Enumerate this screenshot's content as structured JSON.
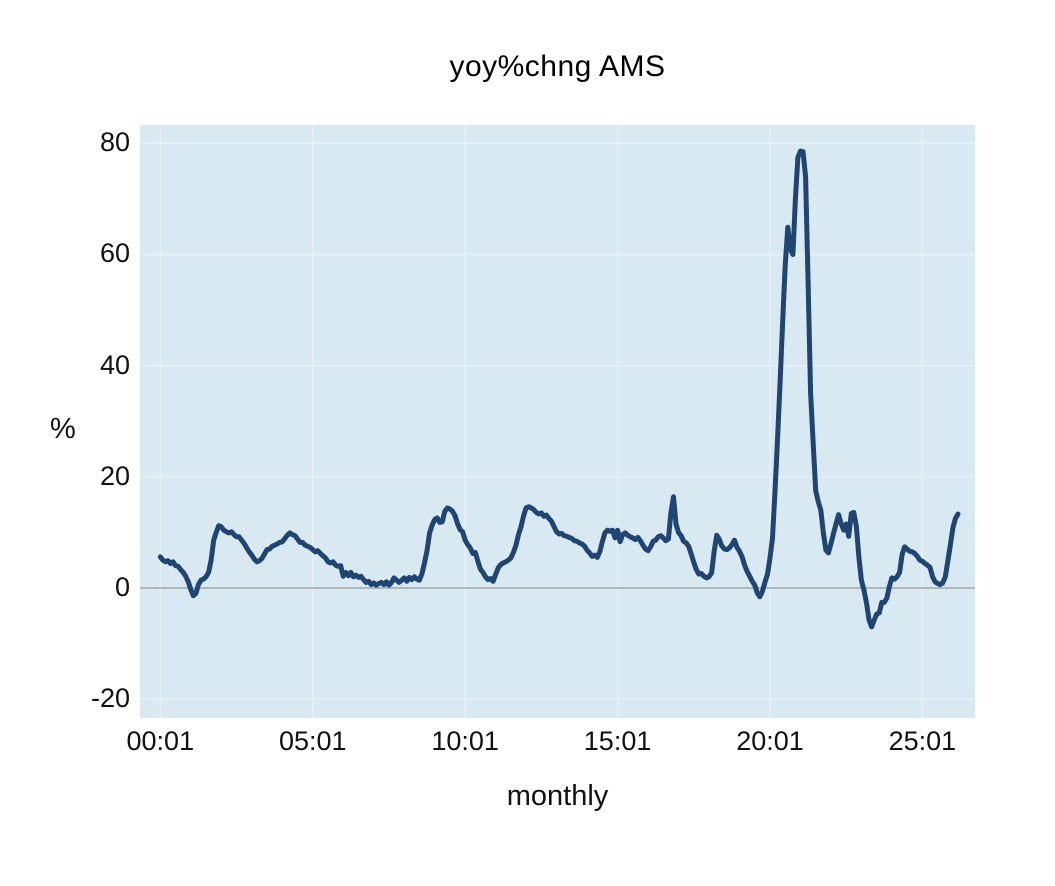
{
  "page": {
    "background": "#ffffff"
  },
  "chart_data": {
    "type": "line",
    "title": "yoy%chng AMS",
    "ylabel": "%",
    "xlabel": "monthly",
    "legend": "none",
    "grid": true,
    "plot_bg": "#d9e9f2",
    "grid_color": "#e9f1f7",
    "zero_line_color": "#a6a6a6",
    "line_color": "#1f4572",
    "line_width": 5,
    "x_unit": "months since 2000-01 (labels are yy:mm)",
    "x_tick_labels": [
      "00:01",
      "05:01",
      "10:01",
      "15:01",
      "20:01",
      "25:01"
    ],
    "x_tick_months": [
      0,
      60,
      120,
      180,
      240,
      300
    ],
    "y_ticks": [
      80,
      60,
      40,
      20,
      0,
      -20
    ],
    "ylim": [
      -23.4,
      83.3
    ],
    "xlim_months": [
      -8,
      320.7
    ],
    "series_start": "2000-01",
    "series_end": "2026-03",
    "frequency": "monthly",
    "values": [
      5.6,
      5.0,
      4.7,
      4.9,
      4.4,
      4.7,
      4.0,
      3.9,
      3.3,
      2.8,
      2.1,
      1.1,
      -0.3,
      -1.4,
      -1.0,
      0.6,
      1.4,
      1.6,
      2.0,
      2.8,
      5.0,
      8.6,
      10.0,
      11.2,
      11.0,
      10.4,
      10.1,
      9.9,
      10.1,
      9.6,
      9.2,
      9.2,
      8.6,
      8.0,
      7.2,
      6.5,
      5.9,
      5.2,
      4.7,
      4.9,
      5.3,
      6.1,
      6.9,
      7.0,
      7.5,
      7.7,
      7.9,
      8.2,
      8.3,
      8.9,
      9.5,
      9.9,
      9.6,
      9.4,
      8.8,
      8.2,
      8.2,
      7.7,
      7.5,
      7.3,
      6.9,
      6.5,
      6.7,
      6.2,
      5.8,
      5.4,
      4.7,
      4.5,
      4.7,
      4.1,
      3.9,
      4.0,
      2.1,
      2.8,
      2.2,
      2.8,
      2.0,
      2.3,
      1.9,
      2.1,
      1.5,
      1.0,
      1.2,
      0.6,
      0.9,
      0.5,
      0.8,
      1.0,
      0.6,
      1.1,
      0.5,
      1.0,
      1.8,
      1.4,
      1.0,
      1.4,
      1.8,
      1.2,
      1.9,
      1.5,
      2.0,
      1.6,
      1.4,
      2.6,
      4.5,
      6.8,
      9.9,
      11.3,
      12.3,
      12.6,
      11.8,
      11.9,
      13.8,
      14.4,
      14.2,
      13.8,
      13.0,
      11.6,
      10.5,
      10.1,
      8.6,
      7.8,
      7.2,
      6.2,
      6.4,
      4.8,
      3.4,
      2.8,
      2.0,
      1.5,
      1.7,
      1.2,
      2.4,
      3.6,
      4.2,
      4.5,
      4.7,
      5.0,
      5.4,
      6.4,
      7.7,
      9.6,
      11.0,
      13.0,
      14.4,
      14.6,
      14.4,
      14.1,
      13.6,
      13.3,
      13.5,
      12.9,
      13.1,
      12.5,
      12.0,
      11.0,
      10.1,
      9.7,
      9.8,
      9.4,
      9.3,
      9.1,
      8.9,
      8.5,
      8.4,
      8.1,
      7.9,
      7.5,
      6.8,
      6.3,
      5.7,
      5.9,
      5.5,
      6.5,
      8.3,
      9.9,
      10.4,
      10.2,
      10.4,
      9.0,
      10.4,
      8.3,
      9.6,
      9.9,
      9.5,
      9.2,
      9.0,
      8.7,
      9.1,
      8.5,
      7.7,
      7.0,
      6.7,
      7.4,
      8.4,
      8.6,
      9.2,
      9.4,
      9.0,
      8.5,
      8.8,
      13.5,
      16.4,
      11.5,
      10.0,
      9.4,
      8.4,
      8.1,
      7.5,
      6.1,
      4.6,
      3.3,
      2.5,
      2.6,
      2.1,
      1.8,
      2.0,
      2.7,
      6.5,
      9.5,
      8.8,
      7.6,
      7.0,
      6.9,
      7.2,
      7.8,
      8.6,
      7.3,
      6.6,
      5.6,
      4.1,
      3.0,
      2.1,
      1.2,
      0.5,
      -0.9,
      -1.6,
      -0.6,
      1.0,
      2.5,
      5.4,
      9.0,
      17.7,
      27.0,
      37.5,
      48.0,
      58.0,
      64.9,
      61.0,
      60.0,
      70.0,
      77.5,
      78.6,
      78.5,
      74.0,
      55.0,
      35.0,
      26.0,
      17.5,
      15.5,
      14.0,
      10.0,
      6.8,
      6.3,
      8.0,
      9.8,
      11.5,
      13.2,
      11.6,
      10.4,
      11.5,
      9.3,
      13.4,
      13.6,
      11.0,
      5.5,
      1.4,
      -0.4,
      -2.7,
      -5.8,
      -7.0,
      -5.8,
      -4.7,
      -4.5,
      -2.6,
      -2.6,
      -1.8,
      0.3,
      1.8,
      1.6,
      2.0,
      2.8,
      6.0,
      7.4,
      7.0,
      6.6,
      6.5,
      6.2,
      5.7,
      5.0,
      4.8,
      4.4,
      4.1,
      3.7,
      2.0,
      1.1,
      0.8,
      0.6,
      0.9,
      2.0,
      4.8,
      7.8,
      10.8,
      12.5,
      13.3
    ]
  }
}
